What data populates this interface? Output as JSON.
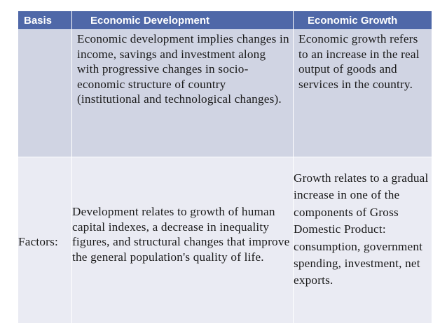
{
  "header": {
    "basis": "Basis",
    "development": "Economic Development",
    "growth": "Economic Growth"
  },
  "rows": [
    {
      "basis": "",
      "development": "Economic development implies changes in income, savings and investment along with progressive changes in socio-economic structure of country (institutional and technological changes).",
      "growth": "Economic growth refers to an increase in the real output of goods and services in the country."
    },
    {
      "basis": "Factors:",
      "development": "Development relates to growth of human capital indexes, a decrease in inequality figures, and structural changes that improve the general population's quality of life.",
      "growth": "Growth relates to a gradual increase in one of the components of Gross Domestic Product: consumption, government spending, investment, net exports."
    }
  ],
  "colors": {
    "header_bg": "#4f68a8",
    "row1_bg": "#d0d4e3",
    "row2_bg": "#eaebf3"
  }
}
